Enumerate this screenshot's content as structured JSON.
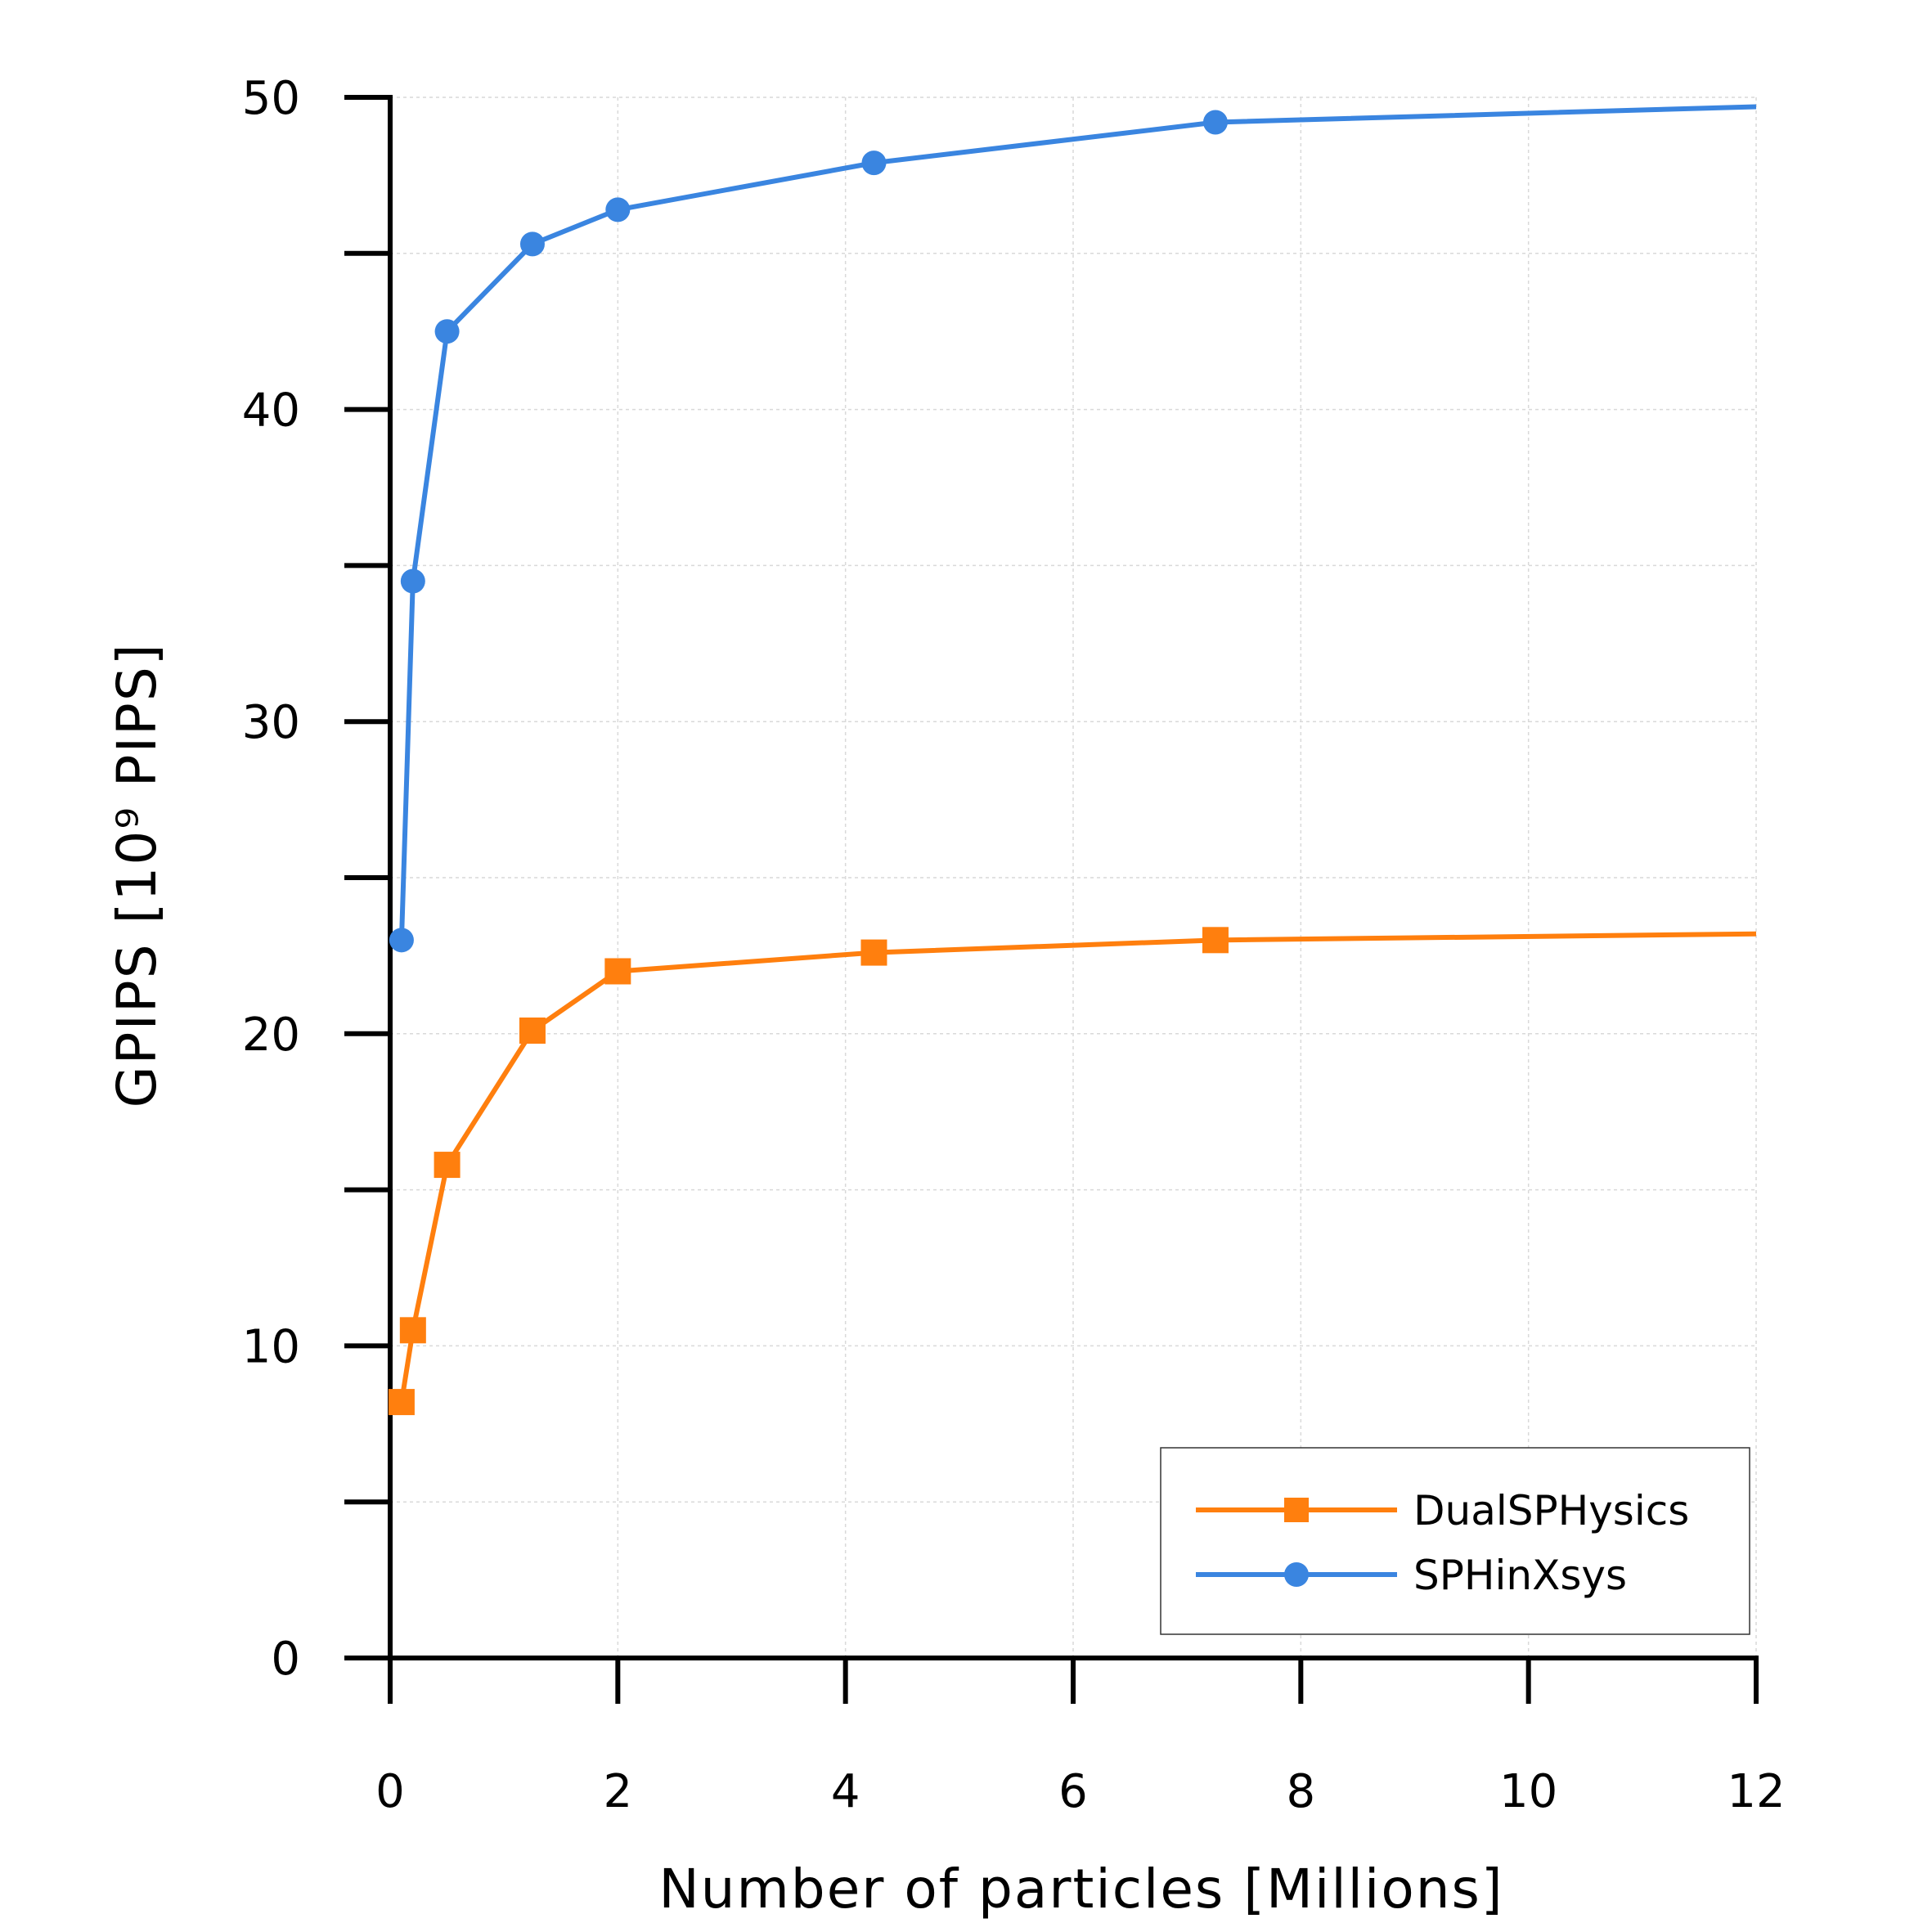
{
  "chart_data": {
    "type": "line",
    "title": "",
    "xlabel": "Number of particles [Millions]",
    "ylabel": "GPIPS [10⁹ PIPS]",
    "xlim": [
      0,
      12
    ],
    "ylim": [
      0,
      50
    ],
    "x_ticks": [
      0,
      2,
      4,
      6,
      8,
      10,
      12
    ],
    "x_tick_labels": [
      "0",
      "2",
      "4",
      "6",
      "8",
      "10",
      "12"
    ],
    "y_ticks": [
      0,
      10,
      20,
      30,
      40,
      50
    ],
    "y_tick_labels": [
      "0",
      "10",
      "20",
      "30",
      "40",
      "50"
    ],
    "y_minor_ticks": [
      5,
      15,
      25,
      35,
      45
    ],
    "grid": true,
    "legend_position": "bottom-right",
    "series": [
      {
        "name": "DualSPHysics",
        "color": "#ff7f0e",
        "marker": "square",
        "x": [
          0.1,
          0.2,
          0.5,
          1.25,
          2.0,
          4.25,
          7.25,
          12.0
        ],
        "y": [
          8.2,
          10.5,
          15.8,
          20.1,
          22.0,
          22.6,
          23.0,
          23.2
        ],
        "markers_shown": [
          true,
          true,
          true,
          true,
          true,
          true,
          true,
          false
        ]
      },
      {
        "name": "SPHinXsys",
        "color": "#3a85e0",
        "marker": "circle",
        "x": [
          0.1,
          0.2,
          0.5,
          1.25,
          2.0,
          4.25,
          7.25,
          12.0
        ],
        "y": [
          23.0,
          34.5,
          42.5,
          45.3,
          46.4,
          47.9,
          49.2,
          49.7
        ],
        "markers_shown": [
          true,
          true,
          true,
          true,
          true,
          true,
          true,
          false
        ]
      }
    ]
  }
}
